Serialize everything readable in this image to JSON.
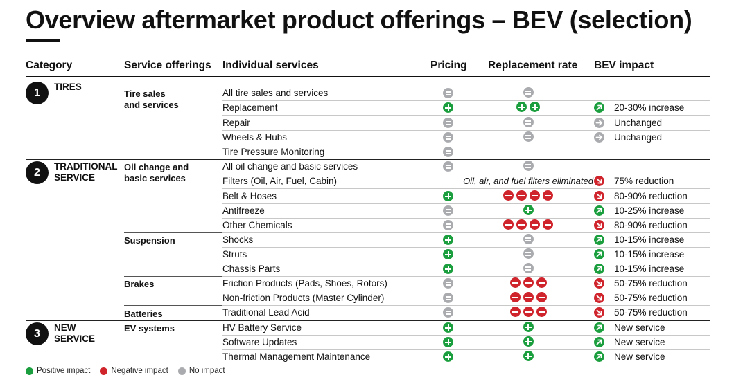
{
  "title": "Overview aftermarket product offerings – BEV (selection)",
  "headers": {
    "category": "Category",
    "service_offerings": "Service offerings",
    "individual_services": "Individual services",
    "pricing": "Pricing",
    "replacement_rate": "Replacement rate",
    "bev_impact": "BEV impact"
  },
  "categories": [
    {
      "number": "1",
      "label_line1": "TIRES",
      "label_line2": ""
    },
    {
      "number": "2",
      "label_line1": "TRADITIONAL",
      "label_line2": "SERVICE"
    },
    {
      "number": "3",
      "label_line1": "NEW",
      "label_line2": "SERVICE"
    }
  ],
  "groups": [
    {
      "line1": "Tire sales",
      "line2": "and services"
    },
    {
      "line1": "Oil change and",
      "line2": "basic services"
    },
    {
      "line1": "Suspension",
      "line2": ""
    },
    {
      "line1": "Brakes",
      "line2": ""
    },
    {
      "line1": "Batteries",
      "line2": ""
    },
    {
      "line1": "EV systems",
      "line2": ""
    }
  ],
  "rows": [
    {
      "service": "All tire sales and services",
      "pricing": "none",
      "replacement": [
        "none"
      ],
      "impact_icon": "",
      "impact": ""
    },
    {
      "service": "Replacement",
      "pricing": "pos",
      "replacement": [
        "pos",
        "pos"
      ],
      "impact_icon": "up",
      "impact": "20-30% increase"
    },
    {
      "service": "Repair",
      "pricing": "none",
      "replacement": [
        "none"
      ],
      "impact_icon": "flat",
      "impact": "Unchanged"
    },
    {
      "service": "Wheels & Hubs",
      "pricing": "none",
      "replacement": [
        "none"
      ],
      "impact_icon": "flat",
      "impact": "Unchanged"
    },
    {
      "service": "Tire Pressure Monitoring",
      "pricing": "none",
      "replacement": [],
      "impact_icon": "",
      "impact": ""
    },
    {
      "service": "All oil change and basic services",
      "pricing": "none",
      "replacement": [
        "none"
      ],
      "impact_icon": "",
      "impact": ""
    },
    {
      "service": "Filters (Oil, Air, Fuel, Cabin)",
      "pricing": "",
      "replacement": [],
      "replacement_text": "Oil, air, and fuel filters eliminated",
      "impact_icon": "down",
      "impact": "75% reduction"
    },
    {
      "service": "Belt & Hoses",
      "pricing": "pos",
      "replacement": [
        "neg",
        "neg",
        "neg",
        "neg"
      ],
      "impact_icon": "down",
      "impact": "80-90% reduction"
    },
    {
      "service": "Antifreeze",
      "pricing": "none",
      "replacement": [
        "pos"
      ],
      "impact_icon": "up",
      "impact": "10-25% increase"
    },
    {
      "service": "Other Chemicals",
      "pricing": "none",
      "replacement": [
        "neg",
        "neg",
        "neg",
        "neg"
      ],
      "impact_icon": "down",
      "impact": "80-90% reduction"
    },
    {
      "service": "Shocks",
      "pricing": "pos",
      "replacement": [
        "none"
      ],
      "impact_icon": "up",
      "impact": "10-15% increase"
    },
    {
      "service": "Struts",
      "pricing": "pos",
      "replacement": [
        "none"
      ],
      "impact_icon": "up",
      "impact": "10-15% increase"
    },
    {
      "service": "Chassis Parts",
      "pricing": "pos",
      "replacement": [
        "none"
      ],
      "impact_icon": "up",
      "impact": "10-15% increase"
    },
    {
      "service": "Friction Products (Pads, Shoes, Rotors)",
      "pricing": "none",
      "replacement": [
        "neg",
        "neg",
        "neg"
      ],
      "impact_icon": "down",
      "impact": "50-75% reduction"
    },
    {
      "service": "Non-friction Products (Master Cylinder)",
      "pricing": "none",
      "replacement": [
        "neg",
        "neg",
        "neg"
      ],
      "impact_icon": "down",
      "impact": "50-75% reduction"
    },
    {
      "service": "Traditional Lead Acid",
      "pricing": "none",
      "replacement": [
        "neg",
        "neg",
        "neg"
      ],
      "impact_icon": "down",
      "impact": "50-75% reduction"
    },
    {
      "service": "HV Battery Service",
      "pricing": "pos",
      "replacement": [
        "pos"
      ],
      "impact_icon": "up",
      "impact": "New service"
    },
    {
      "service": "Software Updates",
      "pricing": "pos",
      "replacement": [
        "pos"
      ],
      "impact_icon": "up",
      "impact": "New service"
    },
    {
      "service": "Thermal Management Maintenance",
      "pricing": "pos",
      "replacement": [
        "pos"
      ],
      "impact_icon": "up",
      "impact": "New service"
    }
  ],
  "legend": {
    "positive": "Positive impact",
    "negative": "Negative impact",
    "none": "No impact"
  },
  "colors": {
    "positive": "#1b9e3e",
    "negative": "#d0242c",
    "none": "#a9abae"
  }
}
